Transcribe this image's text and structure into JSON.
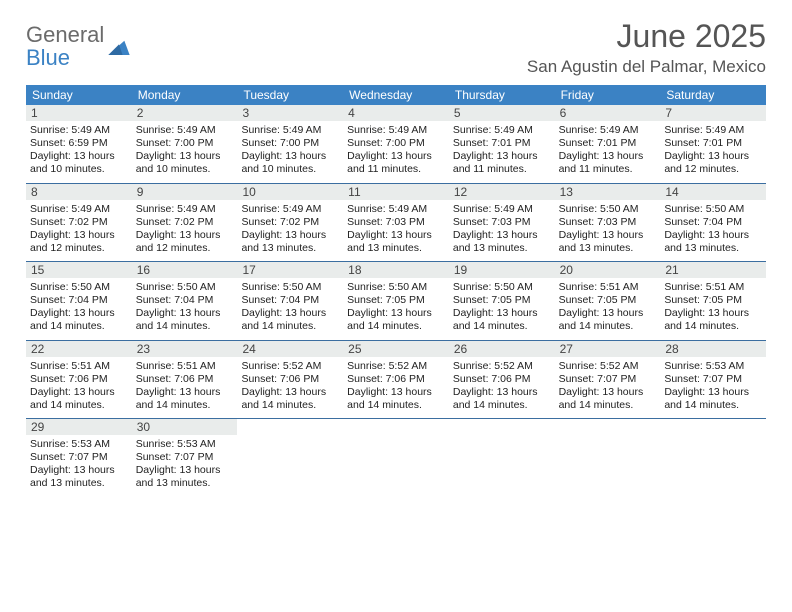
{
  "brand": {
    "part1": "General",
    "part2": "Blue"
  },
  "title": "June 2025",
  "location": "San Agustin del Palmar, Mexico",
  "colors": {
    "header_bg": "#3b82c4",
    "header_text": "#ffffff",
    "daynum_bg": "#e9eceb",
    "rule": "#3b6ea0",
    "title_text": "#555555",
    "body_text": "#222222"
  },
  "fonts": {
    "title_size_pt": 24,
    "location_size_pt": 13,
    "header_size_pt": 9,
    "cell_size_pt": 8
  },
  "dayNames": [
    "Sunday",
    "Monday",
    "Tuesday",
    "Wednesday",
    "Thursday",
    "Friday",
    "Saturday"
  ],
  "weeks": [
    [
      {
        "n": "1",
        "sr": "Sunrise: 5:49 AM",
        "ss": "Sunset: 6:59 PM",
        "d1": "Daylight: 13 hours",
        "d2": "and 10 minutes."
      },
      {
        "n": "2",
        "sr": "Sunrise: 5:49 AM",
        "ss": "Sunset: 7:00 PM",
        "d1": "Daylight: 13 hours",
        "d2": "and 10 minutes."
      },
      {
        "n": "3",
        "sr": "Sunrise: 5:49 AM",
        "ss": "Sunset: 7:00 PM",
        "d1": "Daylight: 13 hours",
        "d2": "and 10 minutes."
      },
      {
        "n": "4",
        "sr": "Sunrise: 5:49 AM",
        "ss": "Sunset: 7:00 PM",
        "d1": "Daylight: 13 hours",
        "d2": "and 11 minutes."
      },
      {
        "n": "5",
        "sr": "Sunrise: 5:49 AM",
        "ss": "Sunset: 7:01 PM",
        "d1": "Daylight: 13 hours",
        "d2": "and 11 minutes."
      },
      {
        "n": "6",
        "sr": "Sunrise: 5:49 AM",
        "ss": "Sunset: 7:01 PM",
        "d1": "Daylight: 13 hours",
        "d2": "and 11 minutes."
      },
      {
        "n": "7",
        "sr": "Sunrise: 5:49 AM",
        "ss": "Sunset: 7:01 PM",
        "d1": "Daylight: 13 hours",
        "d2": "and 12 minutes."
      }
    ],
    [
      {
        "n": "8",
        "sr": "Sunrise: 5:49 AM",
        "ss": "Sunset: 7:02 PM",
        "d1": "Daylight: 13 hours",
        "d2": "and 12 minutes."
      },
      {
        "n": "9",
        "sr": "Sunrise: 5:49 AM",
        "ss": "Sunset: 7:02 PM",
        "d1": "Daylight: 13 hours",
        "d2": "and 12 minutes."
      },
      {
        "n": "10",
        "sr": "Sunrise: 5:49 AM",
        "ss": "Sunset: 7:02 PM",
        "d1": "Daylight: 13 hours",
        "d2": "and 13 minutes."
      },
      {
        "n": "11",
        "sr": "Sunrise: 5:49 AM",
        "ss": "Sunset: 7:03 PM",
        "d1": "Daylight: 13 hours",
        "d2": "and 13 minutes."
      },
      {
        "n": "12",
        "sr": "Sunrise: 5:49 AM",
        "ss": "Sunset: 7:03 PM",
        "d1": "Daylight: 13 hours",
        "d2": "and 13 minutes."
      },
      {
        "n": "13",
        "sr": "Sunrise: 5:50 AM",
        "ss": "Sunset: 7:03 PM",
        "d1": "Daylight: 13 hours",
        "d2": "and 13 minutes."
      },
      {
        "n": "14",
        "sr": "Sunrise: 5:50 AM",
        "ss": "Sunset: 7:04 PM",
        "d1": "Daylight: 13 hours",
        "d2": "and 13 minutes."
      }
    ],
    [
      {
        "n": "15",
        "sr": "Sunrise: 5:50 AM",
        "ss": "Sunset: 7:04 PM",
        "d1": "Daylight: 13 hours",
        "d2": "and 14 minutes."
      },
      {
        "n": "16",
        "sr": "Sunrise: 5:50 AM",
        "ss": "Sunset: 7:04 PM",
        "d1": "Daylight: 13 hours",
        "d2": "and 14 minutes."
      },
      {
        "n": "17",
        "sr": "Sunrise: 5:50 AM",
        "ss": "Sunset: 7:04 PM",
        "d1": "Daylight: 13 hours",
        "d2": "and 14 minutes."
      },
      {
        "n": "18",
        "sr": "Sunrise: 5:50 AM",
        "ss": "Sunset: 7:05 PM",
        "d1": "Daylight: 13 hours",
        "d2": "and 14 minutes."
      },
      {
        "n": "19",
        "sr": "Sunrise: 5:50 AM",
        "ss": "Sunset: 7:05 PM",
        "d1": "Daylight: 13 hours",
        "d2": "and 14 minutes."
      },
      {
        "n": "20",
        "sr": "Sunrise: 5:51 AM",
        "ss": "Sunset: 7:05 PM",
        "d1": "Daylight: 13 hours",
        "d2": "and 14 minutes."
      },
      {
        "n": "21",
        "sr": "Sunrise: 5:51 AM",
        "ss": "Sunset: 7:05 PM",
        "d1": "Daylight: 13 hours",
        "d2": "and 14 minutes."
      }
    ],
    [
      {
        "n": "22",
        "sr": "Sunrise: 5:51 AM",
        "ss": "Sunset: 7:06 PM",
        "d1": "Daylight: 13 hours",
        "d2": "and 14 minutes."
      },
      {
        "n": "23",
        "sr": "Sunrise: 5:51 AM",
        "ss": "Sunset: 7:06 PM",
        "d1": "Daylight: 13 hours",
        "d2": "and 14 minutes."
      },
      {
        "n": "24",
        "sr": "Sunrise: 5:52 AM",
        "ss": "Sunset: 7:06 PM",
        "d1": "Daylight: 13 hours",
        "d2": "and 14 minutes."
      },
      {
        "n": "25",
        "sr": "Sunrise: 5:52 AM",
        "ss": "Sunset: 7:06 PM",
        "d1": "Daylight: 13 hours",
        "d2": "and 14 minutes."
      },
      {
        "n": "26",
        "sr": "Sunrise: 5:52 AM",
        "ss": "Sunset: 7:06 PM",
        "d1": "Daylight: 13 hours",
        "d2": "and 14 minutes."
      },
      {
        "n": "27",
        "sr": "Sunrise: 5:52 AM",
        "ss": "Sunset: 7:07 PM",
        "d1": "Daylight: 13 hours",
        "d2": "and 14 minutes."
      },
      {
        "n": "28",
        "sr": "Sunrise: 5:53 AM",
        "ss": "Sunset: 7:07 PM",
        "d1": "Daylight: 13 hours",
        "d2": "and 14 minutes."
      }
    ],
    [
      {
        "n": "29",
        "sr": "Sunrise: 5:53 AM",
        "ss": "Sunset: 7:07 PM",
        "d1": "Daylight: 13 hours",
        "d2": "and 13 minutes."
      },
      {
        "n": "30",
        "sr": "Sunrise: 5:53 AM",
        "ss": "Sunset: 7:07 PM",
        "d1": "Daylight: 13 hours",
        "d2": "and 13 minutes."
      },
      null,
      null,
      null,
      null,
      null
    ]
  ]
}
